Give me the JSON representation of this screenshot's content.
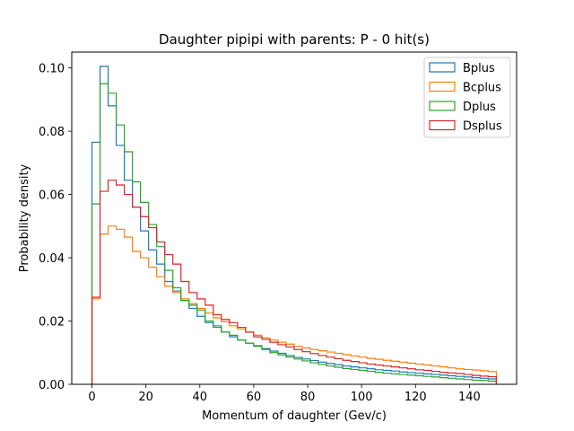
{
  "chart_data": {
    "type": "histogram-step",
    "title": "Daughter pipipi with parents: P - 0 hit(s)",
    "xlabel": "Momentum of daughter (Gev/c)",
    "ylabel": "Probability density",
    "xlim": [
      -7.5,
      157.5
    ],
    "ylim": [
      0,
      0.105
    ],
    "xticks": [
      0,
      20,
      40,
      60,
      80,
      100,
      120,
      140
    ],
    "yticks": [
      0.0,
      0.02,
      0.04,
      0.06,
      0.08,
      0.1
    ],
    "ytick_labels": [
      "0.00",
      "0.02",
      "0.04",
      "0.06",
      "0.08",
      "0.10"
    ],
    "grid": false,
    "legend_position": "top-right",
    "bin_edges": [
      0,
      3,
      6,
      9,
      12,
      15,
      18,
      21,
      24,
      27,
      30,
      33,
      36,
      39,
      42,
      45,
      48,
      51,
      54,
      57,
      60,
      63,
      66,
      69,
      72,
      75,
      78,
      81,
      84,
      87,
      90,
      93,
      96,
      99,
      102,
      105,
      108,
      111,
      114,
      117,
      120,
      123,
      126,
      129,
      132,
      135,
      138,
      141,
      144,
      147,
      150
    ],
    "series": [
      {
        "name": "Bplus",
        "color": "#1f77b4",
        "values": [
          0.0765,
          0.1005,
          0.088,
          0.0755,
          0.0645,
          0.056,
          0.0485,
          0.0425,
          0.038,
          0.0325,
          0.0295,
          0.0265,
          0.024,
          0.0215,
          0.0195,
          0.018,
          0.0165,
          0.015,
          0.014,
          0.013,
          0.0122,
          0.0113,
          0.0105,
          0.0098,
          0.0091,
          0.0085,
          0.008,
          0.0075,
          0.007,
          0.0066,
          0.0062,
          0.0058,
          0.0055,
          0.0052,
          0.0049,
          0.0046,
          0.0044,
          0.0042,
          0.0039,
          0.0037,
          0.0035,
          0.0033,
          0.0031,
          0.0029,
          0.0027,
          0.0025,
          0.0023,
          0.0021,
          0.0019,
          0.0017
        ]
      },
      {
        "name": "Bcplus",
        "color": "#ff7f0e",
        "values": [
          0.027,
          0.0475,
          0.05,
          0.049,
          0.0465,
          0.042,
          0.04,
          0.037,
          0.034,
          0.031,
          0.029,
          0.027,
          0.0255,
          0.024,
          0.0225,
          0.021,
          0.0198,
          0.0185,
          0.0175,
          0.0165,
          0.0155,
          0.0147,
          0.014,
          0.0133,
          0.0127,
          0.012,
          0.0115,
          0.011,
          0.0106,
          0.0102,
          0.0098,
          0.0094,
          0.009,
          0.0086,
          0.0082,
          0.0079,
          0.0076,
          0.0073,
          0.007,
          0.0067,
          0.0064,
          0.0061,
          0.0058,
          0.0055,
          0.0052,
          0.0049,
          0.0047,
          0.0045,
          0.0043,
          0.004
        ]
      },
      {
        "name": "Dplus",
        "color": "#2ca02c",
        "values": [
          0.057,
          0.095,
          0.092,
          0.082,
          0.0735,
          0.064,
          0.0575,
          0.0505,
          0.0435,
          0.036,
          0.0305,
          0.0265,
          0.025,
          0.0235,
          0.02,
          0.0185,
          0.0165,
          0.0155,
          0.014,
          0.013,
          0.012,
          0.011,
          0.01,
          0.0093,
          0.0086,
          0.008,
          0.0074,
          0.0068,
          0.0063,
          0.0058,
          0.0054,
          0.005,
          0.0047,
          0.0044,
          0.0041,
          0.0038,
          0.0035,
          0.0033,
          0.0031,
          0.0029,
          0.0027,
          0.0025,
          0.0023,
          0.0021,
          0.0019,
          0.0017,
          0.0015,
          0.0013,
          0.0012,
          0.001
        ]
      },
      {
        "name": "Dsplus",
        "color": "#d62728",
        "values": [
          0.0275,
          0.061,
          0.0645,
          0.063,
          0.06,
          0.056,
          0.053,
          0.0495,
          0.045,
          0.041,
          0.038,
          0.0325,
          0.029,
          0.027,
          0.025,
          0.022,
          0.0205,
          0.0195,
          0.018,
          0.0165,
          0.015,
          0.0142,
          0.0133,
          0.0125,
          0.0118,
          0.011,
          0.0103,
          0.0097,
          0.0091,
          0.0086,
          0.0081,
          0.0076,
          0.0072,
          0.0068,
          0.0064,
          0.0061,
          0.0058,
          0.0055,
          0.0052,
          0.0049,
          0.0046,
          0.0044,
          0.0041,
          0.0038,
          0.0036,
          0.0034,
          0.0031,
          0.0028,
          0.0026,
          0.0024
        ]
      }
    ]
  }
}
